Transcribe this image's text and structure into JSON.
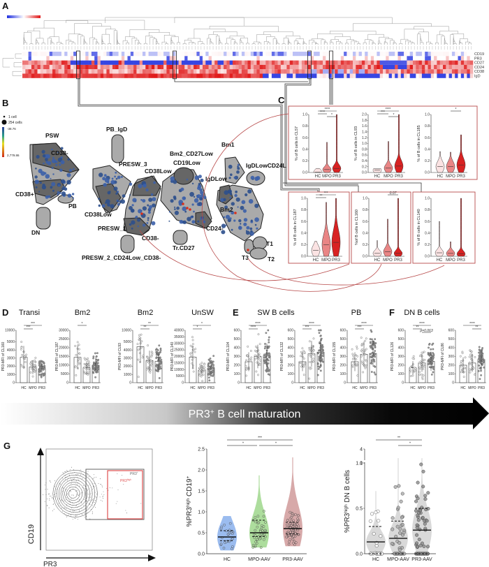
{
  "panels": {
    "A": "A",
    "B": "B",
    "C": "C",
    "D": "D",
    "E": "E",
    "F": "F",
    "G": "G"
  },
  "heatmap": {
    "rows": [
      "CD19",
      "PR3",
      "CD27",
      "CD24",
      "CD38",
      "IgD"
    ],
    "color_low": "#2030e0",
    "color_mid": "#ffffff",
    "color_high": "#e01818",
    "highlight_count": 4
  },
  "network": {
    "legend": {
      "small": "1 cell",
      "large": "254 cells",
      "min": "-38.76",
      "max": "2,779.86"
    },
    "clusters": [
      "PSW",
      "CD38-",
      "CD38+",
      "PB",
      "DN",
      "PB_IgD",
      "PRESW_3",
      "CD38Low",
      "CD38Low",
      "PRESW_1",
      "CD38-",
      "PRESW_2_CD24Low_CD38-",
      "Bm2_CD27Low",
      "CD19Low",
      "Bm1",
      "IgDLowCD24L",
      "IgDLow",
      "Bm2",
      "CD24-",
      "Tr.CD27",
      "T1",
      "T2",
      "T3"
    ]
  },
  "chart_data": [
    {
      "type": "violin",
      "panel": "C",
      "groups": [
        "HC",
        "MPO",
        "PR3"
      ],
      "colors": [
        "#fbe3e3",
        "#e98585",
        "#d82222"
      ],
      "plots": [
        {
          "ylabel": "% of B cells in CL57",
          "ylim": [
            0,
            1.0
          ],
          "ticks": [
            "0.0",
            "0.2",
            "0.4",
            "0.6",
            "0.8",
            "1.0"
          ],
          "median": [
            0.005,
            0.05,
            0.07
          ],
          "max": [
            0.07,
            0.52,
            1.0
          ],
          "sig": [
            [
              "HC",
              "PR3",
              "****"
            ],
            [
              "HC",
              "MPO",
              "****"
            ],
            [
              "MPO",
              "PR3",
              "*"
            ]
          ]
        },
        {
          "ylabel": "% of B cells in CL93",
          "ylim": [
            0,
            2.0
          ],
          "ticks": [
            "0.0",
            "0.2",
            "0.4",
            "0.6",
            "0.8",
            "1.0",
            "1.2",
            "1.4",
            "1.6",
            "1.8",
            "2.0"
          ],
          "median": [
            0.08,
            0.15,
            0.22
          ],
          "max": [
            0.13,
            1.07,
            2.0
          ],
          "sig": [
            [
              "HC",
              "PR3",
              "****"
            ],
            [
              "HC",
              "MPO",
              "***"
            ],
            [
              "MPO",
              "PR3",
              "*"
            ]
          ]
        },
        {
          "ylabel": "% of B cells in CL185",
          "ylim": [
            0,
            1.0
          ],
          "ticks": [
            "0.0",
            "0.2",
            "0.4",
            "0.6",
            "0.8",
            "1.0"
          ],
          "median": [
            0.1,
            0.1,
            0.13
          ],
          "max": [
            0.36,
            0.35,
            0.65
          ],
          "sig": [
            [
              "MPO",
              "PR3",
              "*"
            ]
          ]
        },
        {
          "ylabel": "% of B cells in CL187",
          "ylim": [
            0,
            1.0
          ],
          "ticks": [
            "0.0",
            "0.2",
            "0.4",
            "0.6",
            "0.8",
            "1.0"
          ],
          "median": [
            0.1,
            0.2,
            0.24
          ],
          "max": [
            0.26,
            0.93,
            1.0
          ],
          "sig": [
            [
              "HC",
              "PR3",
              "***"
            ],
            [
              "HC",
              "MPO",
              "**"
            ]
          ]
        },
        {
          "ylabel": "%of B cells in CL160",
          "ylim": [
            0,
            1.0
          ],
          "ticks": [
            "0.0",
            "0.2",
            "0.4",
            "0.6",
            "0.8",
            "1.0"
          ],
          "median": [
            0.05,
            0.08,
            0.05
          ],
          "max": [
            0.27,
            0.64,
            1.0
          ],
          "sig": [
            [
              "MPO",
              "PR3",
              "0.07"
            ]
          ]
        },
        {
          "ylabel": "% of B cells in CL140",
          "ylim": [
            0,
            1.0
          ],
          "ticks": [
            "0.0",
            "0.2",
            "0.4",
            "0.6",
            "0.8",
            "1.0"
          ],
          "median": [
            0.06,
            0.05,
            0.04
          ],
          "max": [
            0.6,
            0.25,
            1.0
          ],
          "sig": []
        }
      ]
    },
    {
      "type": "bar",
      "panels": "D-F",
      "groups": [
        "HC",
        "MPO",
        "PR3"
      ],
      "titles": [
        "Transi",
        "Bm2",
        "Bm2",
        "UnSW",
        "SW B cells",
        "PB",
        "DN B cells"
      ],
      "plots": [
        {
          "ylabel": "PR3-MFI of CL160",
          "ylim": [
            0,
            10000
          ],
          "broken_axis": true,
          "ticks": [
            0,
            1000,
            2000,
            3000,
            4000,
            5000,
            10000
          ],
          "values": [
            3100,
            1900,
            1700
          ],
          "sig": [
            [
              "HC",
              "PR3",
              "***"
            ],
            [
              "HC",
              "MPO",
              "***"
            ]
          ]
        },
        {
          "ylabel": "PR3-MFI of CL187",
          "ylim": [
            0,
            30000
          ],
          "ticks": [
            0,
            5000,
            10000,
            15000,
            20000,
            25000,
            30000
          ],
          "values": [
            14500,
            8500,
            10000
          ],
          "sig": [
            [
              "HC",
              "MPO",
              "*"
            ]
          ]
        },
        {
          "ylabel": "PR3-MFI of CL93",
          "ylim": [
            0,
            10000
          ],
          "broken_axis": true,
          "ticks": [
            0,
            1000,
            2000,
            3000,
            4000,
            5000,
            10000
          ],
          "values": [
            4400,
            2700,
            2600
          ],
          "sig": [
            [
              "HC",
              "PR3",
              "**"
            ],
            [
              "HC",
              "MPO",
              "**"
            ]
          ]
        },
        {
          "ylabel": "PR3-MFI of CL140",
          "ylim": [
            0,
            40000
          ],
          "ticks": [
            0,
            5000,
            10000,
            15000,
            20000,
            25000,
            30000,
            35000,
            40000
          ],
          "values": [
            19500,
            9500,
            11000
          ],
          "sig": [
            [
              "HC",
              "PR3",
              "*"
            ],
            [
              "HC",
              "MPO",
              "*"
            ]
          ]
        },
        {
          "ylabel": "PR3-MFI of CL104",
          "ylim": [
            0,
            600
          ],
          "ticks": [
            0,
            100,
            200,
            300,
            400,
            500,
            600
          ],
          "values": [
            240,
            300,
            310
          ],
          "sig": [
            [
              "HC",
              "PR3",
              "****"
            ],
            [
              "HC",
              "MPO",
              "****"
            ]
          ]
        },
        {
          "ylabel": "PR3-MFI of CL132",
          "ylim": [
            0,
            600
          ],
          "ticks": [
            0,
            100,
            200,
            300,
            400,
            500,
            600
          ],
          "values": [
            240,
            330,
            350
          ],
          "sig": [
            [
              "HC",
              "PR3",
              "****"
            ],
            [
              "HC",
              "MPO",
              "***"
            ]
          ]
        },
        {
          "ylabel": "PR3-MFI of CL155",
          "ylim": [
            0,
            600
          ],
          "ticks": [
            0,
            100,
            200,
            300,
            400,
            500,
            600
          ],
          "values": [
            240,
            325,
            335
          ],
          "sig": [
            [
              "HC",
              "PR3",
              "****"
            ],
            [
              "HC",
              "MPO",
              "***"
            ]
          ]
        },
        {
          "ylabel": "PR3-MFI of CL126",
          "ylim": [
            0,
            600
          ],
          "ticks": [
            0,
            100,
            200,
            300,
            400,
            500,
            600
          ],
          "values": [
            170,
            225,
            245
          ],
          "sig": [
            [
              "HC",
              "PR3",
              "****"
            ],
            [
              "HC",
              "MPO",
              "**"
            ],
            [
              "MPO",
              "PR3",
              "p=0.063"
            ]
          ]
        },
        {
          "ylabel": "PR3-MFI of CL86",
          "ylim": [
            0,
            600
          ],
          "ticks": [
            0,
            100,
            200,
            300,
            400,
            500,
            600
          ],
          "values": [
            200,
            225,
            265
          ],
          "sig": [
            [
              "HC",
              "PR3",
              "****"
            ],
            [
              "MPO",
              "PR3",
              "**"
            ]
          ]
        }
      ]
    },
    {
      "type": "violin",
      "panel": "G-middle",
      "groups": [
        "HC",
        "MPO-AAV",
        "PR3-AAV"
      ],
      "colors": [
        "#7aa6ea",
        "#92d27c",
        "#c98c8c"
      ],
      "ylabel_parts": [
        {
          "t": "%PR3"
        },
        {
          "t": "high",
          "sup": true
        },
        {
          "t": " CD19"
        },
        {
          "t": "+",
          "sup": true
        }
      ],
      "ylim": [
        0,
        2.5
      ],
      "ticks": [
        "0.0",
        "0.5",
        "1.0",
        "1.5",
        "2.0",
        "2.5"
      ],
      "median": [
        0.4,
        0.5,
        0.6
      ],
      "q1": [
        0.31,
        0.41,
        0.47
      ],
      "q3": [
        0.55,
        0.8,
        0.75
      ],
      "min": [
        0.08,
        0.15,
        0.18
      ],
      "max": [
        0.9,
        1.87,
        2.3
      ],
      "sig": [
        [
          "HC",
          "PR3-AAV",
          "***"
        ],
        [
          "HC",
          "MPO-AAV",
          "*"
        ],
        [
          "MPO-AAV",
          "PR3-AAV",
          "*"
        ]
      ]
    },
    {
      "type": "violin",
      "panel": "G-right",
      "groups": [
        "HC",
        "MPO-AAV",
        "PR3-AAV"
      ],
      "colors": [
        "#cccccc",
        "#cccccc",
        "#cccccc"
      ],
      "ylabel_parts": [
        {
          "t": "%PR3"
        },
        {
          "t": "high",
          "sup": true
        },
        {
          "t": " DN B cells"
        }
      ],
      "ylim": [
        0,
        1.0
      ],
      "broken_axis_top": [
        1,
        4
      ],
      "ticks": [
        "0.0",
        "0.5",
        "1.0"
      ],
      "break_ticks": [
        "1",
        "4"
      ],
      "median": [
        0.13,
        0.17,
        0.26
      ],
      "q1": [
        0,
        0,
        0
      ],
      "q3": [
        0.3,
        0.36,
        0.5
      ],
      "max": [
        0.69,
        2.5,
        4.0
      ],
      "sig": [
        [
          "HC",
          "PR3-AAV",
          "**"
        ],
        [
          "MPO-AAV",
          "PR3-AAV",
          "*"
        ]
      ]
    }
  ],
  "flow": {
    "y_axis": "CD19",
    "x_axis": "PR3",
    "gate_outer": [
      {
        "t": "PR3"
      },
      {
        "t": "+",
        "sup": true
      }
    ],
    "gate_inner": [
      {
        "t": "PR3"
      },
      {
        "t": "high",
        "sup": true
      }
    ],
    "gate_inner_color": "#e05050"
  },
  "banner": {
    "parts": [
      {
        "t": "PR3"
      },
      {
        "t": "+",
        "sup": true
      },
      {
        "t": " B cell maturation"
      }
    ]
  }
}
